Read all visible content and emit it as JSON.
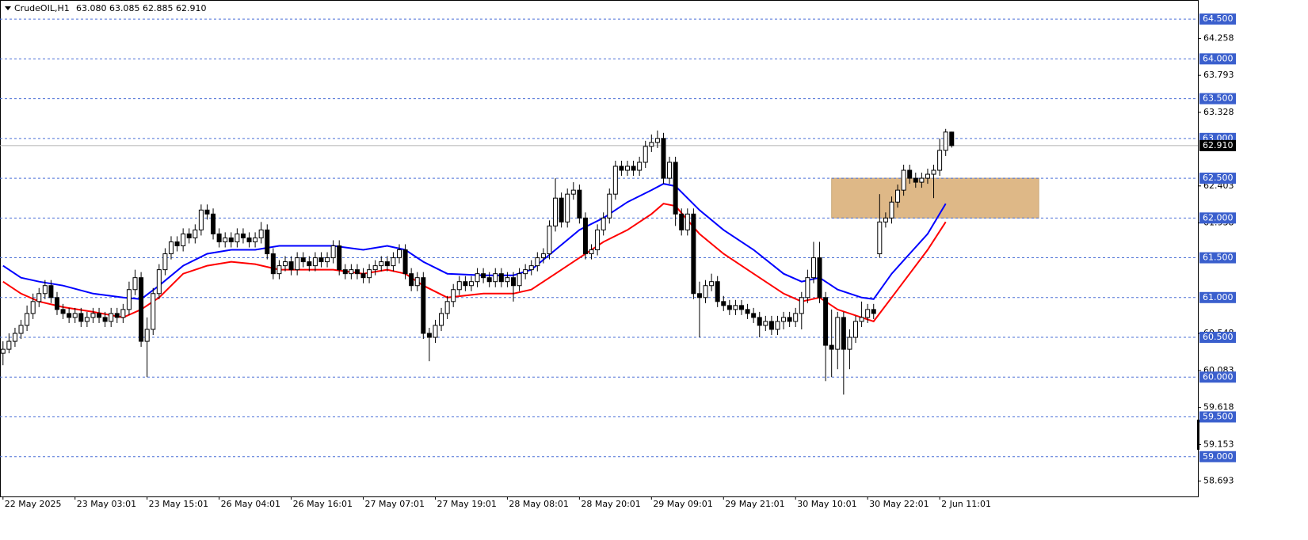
{
  "chart_data": {
    "type": "candlestick",
    "symbol": "CrudeOIL,H1",
    "quote": "63.080 63.085 62.885 62.910",
    "categories": [
      "22 May 2025",
      null,
      null,
      null,
      null,
      null,
      null,
      null,
      null,
      null,
      null,
      null,
      "23 May 03:01",
      null,
      null,
      null,
      null,
      null,
      null,
      null,
      null,
      null,
      null,
      null,
      "23 May 15:01",
      null,
      null,
      null,
      null,
      null,
      null,
      null,
      null,
      null,
      null,
      null,
      "26 May 04:01",
      null,
      null,
      null,
      null,
      null,
      null,
      null,
      null,
      null,
      null,
      null,
      "26 May 16:01",
      null,
      null,
      null,
      null,
      null,
      null,
      null,
      null,
      null,
      null,
      null,
      "27 May 07:01",
      null,
      null,
      null,
      null,
      null,
      null,
      null,
      null,
      null,
      null,
      null,
      "27 May 19:01",
      null,
      null,
      null,
      null,
      null,
      null,
      null,
      null,
      null,
      null,
      null,
      "28 May 08:01",
      null,
      null,
      null,
      null,
      null,
      null,
      null,
      null,
      null,
      null,
      null,
      "28 May 20:01",
      null,
      null,
      null,
      null,
      null,
      null,
      null,
      null,
      null,
      null,
      null,
      "29 May 09:01",
      null,
      null,
      null,
      null,
      null,
      null,
      null,
      null,
      null,
      null,
      null,
      "29 May 21:01",
      null,
      null,
      null,
      null,
      null,
      null,
      null,
      null,
      null,
      null,
      null,
      "30 May 10:01",
      null,
      null,
      null,
      null,
      null,
      null,
      null,
      null,
      null,
      null,
      null,
      "30 May 22:01",
      null,
      null,
      null,
      null,
      null,
      null,
      null,
      null,
      null,
      null,
      null,
      "2 Jun 11:01",
      null,
      null
    ],
    "candles": [
      [
        60.3,
        60.45,
        60.15,
        60.35
      ],
      [
        60.35,
        60.55,
        60.3,
        60.45
      ],
      [
        60.45,
        60.62,
        60.38,
        60.55
      ],
      [
        60.55,
        60.72,
        60.48,
        60.65
      ],
      [
        60.65,
        60.9,
        60.58,
        60.8
      ],
      [
        60.8,
        61.05,
        60.73,
        60.95
      ],
      [
        60.95,
        61.12,
        60.88,
        61.05
      ],
      [
        61.05,
        61.22,
        60.98,
        61.15
      ],
      [
        61.15,
        61.22,
        60.93,
        61.0
      ],
      [
        61.0,
        61.07,
        60.78,
        60.85
      ],
      [
        60.85,
        60.92,
        60.73,
        60.8
      ],
      [
        60.8,
        60.87,
        60.68,
        60.75
      ],
      [
        60.75,
        60.87,
        60.68,
        60.8
      ],
      [
        60.8,
        60.87,
        60.63,
        60.7
      ],
      [
        60.7,
        60.82,
        60.63,
        60.75
      ],
      [
        60.75,
        60.87,
        60.68,
        60.8
      ],
      [
        60.8,
        60.87,
        60.68,
        60.75
      ],
      [
        60.75,
        60.82,
        60.63,
        60.7
      ],
      [
        60.7,
        60.87,
        60.63,
        60.8
      ],
      [
        60.8,
        60.87,
        60.68,
        60.75
      ],
      [
        60.75,
        60.92,
        60.68,
        60.85
      ],
      [
        60.85,
        61.2,
        60.78,
        61.1
      ],
      [
        61.1,
        61.35,
        61.03,
        61.25
      ],
      [
        61.25,
        61.32,
        60.38,
        60.45
      ],
      [
        60.45,
        60.75,
        60.0,
        60.6
      ],
      [
        60.6,
        61.12,
        60.53,
        61.05
      ],
      [
        61.05,
        61.42,
        60.98,
        61.35
      ],
      [
        61.35,
        61.62,
        61.28,
        61.55
      ],
      [
        61.55,
        61.77,
        61.48,
        61.7
      ],
      [
        61.7,
        61.77,
        61.58,
        61.65
      ],
      [
        61.65,
        61.87,
        61.58,
        61.8
      ],
      [
        61.8,
        61.87,
        61.68,
        61.75
      ],
      [
        61.75,
        61.92,
        61.68,
        61.85
      ],
      [
        61.85,
        62.17,
        61.78,
        62.1
      ],
      [
        62.1,
        62.17,
        61.98,
        62.05
      ],
      [
        62.05,
        62.12,
        61.73,
        61.8
      ],
      [
        61.8,
        61.87,
        61.63,
        61.7
      ],
      [
        61.7,
        61.82,
        61.63,
        61.75
      ],
      [
        61.75,
        61.82,
        61.63,
        61.7
      ],
      [
        61.7,
        61.87,
        61.63,
        61.8
      ],
      [
        61.8,
        61.87,
        61.68,
        61.75
      ],
      [
        61.75,
        61.82,
        61.63,
        61.7
      ],
      [
        61.7,
        61.82,
        61.63,
        61.75
      ],
      [
        61.75,
        61.95,
        61.68,
        61.85
      ],
      [
        61.85,
        61.92,
        61.48,
        61.55
      ],
      [
        61.55,
        61.62,
        61.23,
        61.3
      ],
      [
        61.3,
        61.47,
        61.23,
        61.4
      ],
      [
        61.4,
        61.52,
        61.33,
        61.45
      ],
      [
        61.45,
        61.52,
        61.28,
        61.35
      ],
      [
        61.35,
        61.57,
        61.28,
        61.5
      ],
      [
        61.5,
        61.57,
        61.38,
        61.45
      ],
      [
        61.45,
        61.52,
        61.33,
        61.4
      ],
      [
        61.4,
        61.57,
        61.33,
        61.5
      ],
      [
        61.5,
        61.57,
        61.38,
        61.45
      ],
      [
        61.45,
        61.57,
        61.38,
        61.5
      ],
      [
        61.5,
        61.72,
        61.43,
        61.65
      ],
      [
        61.65,
        61.72,
        61.28,
        61.35
      ],
      [
        61.35,
        61.42,
        61.23,
        61.3
      ],
      [
        61.3,
        61.42,
        61.23,
        61.35
      ],
      [
        61.35,
        61.42,
        61.23,
        61.3
      ],
      [
        61.3,
        61.37,
        61.18,
        61.25
      ],
      [
        61.25,
        61.42,
        61.18,
        61.35
      ],
      [
        61.35,
        61.47,
        61.28,
        61.4
      ],
      [
        61.4,
        61.52,
        61.33,
        61.45
      ],
      [
        61.45,
        61.52,
        61.33,
        61.4
      ],
      [
        61.4,
        61.57,
        61.33,
        61.5
      ],
      [
        61.5,
        61.67,
        61.43,
        61.6
      ],
      [
        61.6,
        61.67,
        61.23,
        61.3
      ],
      [
        61.3,
        61.37,
        61.08,
        61.15
      ],
      [
        61.15,
        61.32,
        61.08,
        61.25
      ],
      [
        61.25,
        61.32,
        60.48,
        60.55
      ],
      [
        60.55,
        60.62,
        60.2,
        60.5
      ],
      [
        60.5,
        60.72,
        60.43,
        60.65
      ],
      [
        60.65,
        60.87,
        60.58,
        60.8
      ],
      [
        60.8,
        61.02,
        60.73,
        60.95
      ],
      [
        60.95,
        61.17,
        60.88,
        61.1
      ],
      [
        61.1,
        61.27,
        61.03,
        61.2
      ],
      [
        61.2,
        61.27,
        61.08,
        61.15
      ],
      [
        61.15,
        61.27,
        61.08,
        61.2
      ],
      [
        61.2,
        61.37,
        61.13,
        61.3
      ],
      [
        61.3,
        61.37,
        61.18,
        61.25
      ],
      [
        61.25,
        61.32,
        61.13,
        61.2
      ],
      [
        61.2,
        61.37,
        61.13,
        61.3
      ],
      [
        61.3,
        61.37,
        61.13,
        61.2
      ],
      [
        61.2,
        61.32,
        61.13,
        61.25
      ],
      [
        61.25,
        61.32,
        60.95,
        61.15
      ],
      [
        61.15,
        61.37,
        61.08,
        61.3
      ],
      [
        61.3,
        61.42,
        61.23,
        61.35
      ],
      [
        61.35,
        61.47,
        61.28,
        61.4
      ],
      [
        61.4,
        61.57,
        61.33,
        61.5
      ],
      [
        61.5,
        61.62,
        61.43,
        61.55
      ],
      [
        61.55,
        61.97,
        61.48,
        61.9
      ],
      [
        61.9,
        62.5,
        61.83,
        62.25
      ],
      [
        62.25,
        62.32,
        61.88,
        61.95
      ],
      [
        61.95,
        62.37,
        61.88,
        62.3
      ],
      [
        62.3,
        62.45,
        62.23,
        62.35
      ],
      [
        62.35,
        62.42,
        61.93,
        62.0
      ],
      [
        62.0,
        62.07,
        61.48,
        61.55
      ],
      [
        61.55,
        61.67,
        61.48,
        61.6
      ],
      [
        61.6,
        61.92,
        61.53,
        61.85
      ],
      [
        61.85,
        62.07,
        61.78,
        62.0
      ],
      [
        62.0,
        62.37,
        61.93,
        62.3
      ],
      [
        62.3,
        62.72,
        62.23,
        62.65
      ],
      [
        62.65,
        62.72,
        62.53,
        62.6
      ],
      [
        62.6,
        62.72,
        62.53,
        62.65
      ],
      [
        62.65,
        62.72,
        62.53,
        62.6
      ],
      [
        62.6,
        62.77,
        62.53,
        62.7
      ],
      [
        62.7,
        62.97,
        62.63,
        62.9
      ],
      [
        62.9,
        63.05,
        62.83,
        62.95
      ],
      [
        62.95,
        63.1,
        62.88,
        63.0
      ],
      [
        63.0,
        63.07,
        62.43,
        62.5
      ],
      [
        62.5,
        62.77,
        62.43,
        62.7
      ],
      [
        62.7,
        62.77,
        61.9,
        62.05
      ],
      [
        62.05,
        62.12,
        61.78,
        61.85
      ],
      [
        61.85,
        62.12,
        61.78,
        62.05
      ],
      [
        62.05,
        62.12,
        60.98,
        61.05
      ],
      [
        61.05,
        61.2,
        60.5,
        61.0
      ],
      [
        61.0,
        61.22,
        60.93,
        61.15
      ],
      [
        61.15,
        61.3,
        61.08,
        61.2
      ],
      [
        61.2,
        61.27,
        60.88,
        60.95
      ],
      [
        60.95,
        61.02,
        60.83,
        60.9
      ],
      [
        60.9,
        60.97,
        60.78,
        60.85
      ],
      [
        60.85,
        60.97,
        60.78,
        60.9
      ],
      [
        60.9,
        60.97,
        60.78,
        60.85
      ],
      [
        60.85,
        60.92,
        60.73,
        60.8
      ],
      [
        60.8,
        60.87,
        60.68,
        60.75
      ],
      [
        60.75,
        60.82,
        60.5,
        60.65
      ],
      [
        60.65,
        60.77,
        60.58,
        60.7
      ],
      [
        60.7,
        60.77,
        60.53,
        60.6
      ],
      [
        60.6,
        60.77,
        60.53,
        60.7
      ],
      [
        60.7,
        60.82,
        60.6,
        60.75
      ],
      [
        60.75,
        60.82,
        60.63,
        60.7
      ],
      [
        60.7,
        60.87,
        60.63,
        60.8
      ],
      [
        60.8,
        61.07,
        60.6,
        61.0
      ],
      [
        61.0,
        61.35,
        60.93,
        61.25
      ],
      [
        61.25,
        61.7,
        61.18,
        61.5
      ],
      [
        61.5,
        61.7,
        60.93,
        61.0
      ],
      [
        61.0,
        61.07,
        59.95,
        60.4
      ],
      [
        60.4,
        60.85,
        60.0,
        60.35
      ],
      [
        60.35,
        60.82,
        60.1,
        60.75
      ],
      [
        60.75,
        60.82,
        59.78,
        60.35
      ],
      [
        60.35,
        60.6,
        60.1,
        60.5
      ],
      [
        60.5,
        60.77,
        60.43,
        60.7
      ],
      [
        60.7,
        60.95,
        60.63,
        60.75
      ],
      [
        60.75,
        60.92,
        60.68,
        60.85
      ],
      [
        60.85,
        60.92,
        60.73,
        60.8
      ],
      [
        61.55,
        62.3,
        61.5,
        61.95
      ],
      [
        61.95,
        62.07,
        61.88,
        62.0
      ],
      [
        62.0,
        62.27,
        61.93,
        62.2
      ],
      [
        62.2,
        62.42,
        62.13,
        62.35
      ],
      [
        62.35,
        62.67,
        62.28,
        62.6
      ],
      [
        62.6,
        62.67,
        62.43,
        62.5
      ],
      [
        62.5,
        62.57,
        62.38,
        62.45
      ],
      [
        62.45,
        62.57,
        62.38,
        62.5
      ],
      [
        62.5,
        62.62,
        62.43,
        62.55
      ],
      [
        62.55,
        62.67,
        62.25,
        62.6
      ],
      [
        62.6,
        63.0,
        62.53,
        62.85
      ],
      [
        62.85,
        63.12,
        62.78,
        63.08
      ],
      [
        63.08,
        63.085,
        62.885,
        62.91
      ]
    ],
    "lines": [
      {
        "color": "#0000ff",
        "x": [
          0,
          3,
          6,
          10,
          15,
          20,
          23,
          26,
          30,
          34,
          38,
          42,
          46,
          50,
          55,
          60,
          64,
          67,
          70,
          74,
          80,
          85,
          88,
          92,
          96,
          100,
          104,
          108,
          110,
          112,
          116,
          120,
          125,
          130,
          133,
          136,
          139,
          143,
          145,
          148,
          151,
          154,
          157
        ],
        "values": [
          61.4,
          61.25,
          61.2,
          61.15,
          61.05,
          61.0,
          60.98,
          61.15,
          61.4,
          61.55,
          61.6,
          61.6,
          61.65,
          61.65,
          61.65,
          61.6,
          61.65,
          61.6,
          61.45,
          61.3,
          61.28,
          61.28,
          61.35,
          61.6,
          61.85,
          62.0,
          62.2,
          62.35,
          62.43,
          62.4,
          62.1,
          61.85,
          61.6,
          61.3,
          61.2,
          61.25,
          61.1,
          61.0,
          60.98,
          61.3,
          61.55,
          61.8,
          62.18
        ]
      },
      {
        "color": "#ff0000",
        "x": [
          0,
          3,
          6,
          10,
          15,
          20,
          23,
          26,
          30,
          34,
          38,
          42,
          46,
          50,
          55,
          60,
          64,
          67,
          70,
          74,
          80,
          85,
          88,
          92,
          96,
          100,
          104,
          108,
          110,
          112,
          116,
          120,
          125,
          130,
          133,
          136,
          139,
          143,
          145,
          148,
          151,
          154,
          157
        ],
        "values": [
          61.2,
          61.05,
          60.95,
          60.88,
          60.82,
          60.75,
          60.85,
          61.0,
          61.3,
          61.4,
          61.45,
          61.42,
          61.35,
          61.35,
          61.35,
          61.3,
          61.35,
          61.3,
          61.15,
          61.0,
          61.05,
          61.05,
          61.1,
          61.3,
          61.5,
          61.7,
          61.85,
          62.05,
          62.18,
          62.15,
          61.8,
          61.55,
          61.3,
          61.05,
          60.95,
          61.0,
          60.85,
          60.75,
          60.7,
          61.0,
          61.3,
          61.6,
          61.95
        ]
      }
    ],
    "zone": {
      "x": [
        138,
        172.5
      ],
      "y": [
        62.0,
        62.5
      ],
      "color": "#deb887"
    },
    "xlim": [
      -0.5,
      199
    ],
    "ylim": [
      58.5,
      64.74
    ],
    "yticks": [
      64.258,
      63.793,
      63.328,
      62.403,
      61.938,
      60.548,
      60.083,
      59.618,
      59.153,
      58.693
    ],
    "levels": [
      {
        "value": 64.5,
        "label": "64.500"
      },
      {
        "value": 64.0,
        "label": "64.000"
      },
      {
        "value": 63.5,
        "label": "63.500"
      },
      {
        "value": 63.0,
        "label": "63.000"
      },
      {
        "value": 62.5,
        "label": "62.500"
      },
      {
        "value": 62.0,
        "label": "62.000"
      },
      {
        "value": 61.5,
        "label": "61.500"
      },
      {
        "value": 61.0,
        "label": "61.000"
      },
      {
        "value": 60.5,
        "label": "60.500"
      },
      {
        "value": 60.0,
        "label": "60.000"
      },
      {
        "value": 59.5,
        "label": "59.500"
      },
      {
        "value": 59.0,
        "label": "59.000"
      }
    ],
    "level_color": "#3a5fcd",
    "current_price": {
      "value": 62.91,
      "label": "62.910"
    },
    "up_color": "#ffffff",
    "down_color": "#000000"
  }
}
